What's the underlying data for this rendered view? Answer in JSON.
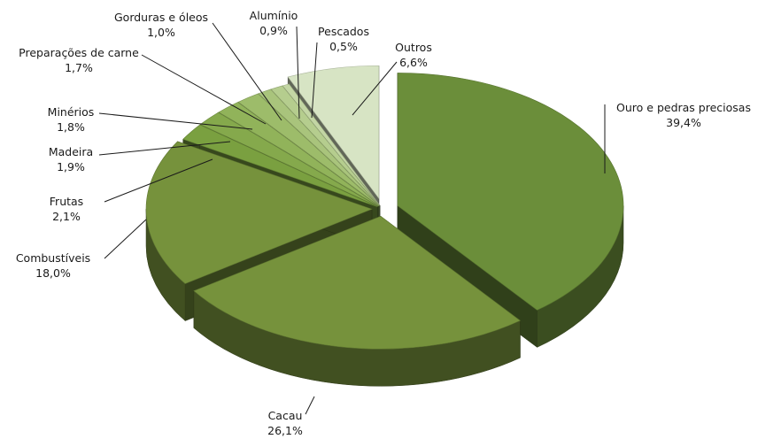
{
  "chart_data": {
    "type": "pie",
    "title": "",
    "style": "3d-exploded",
    "slices": [
      {
        "name": "Ouro e pedras preciosas",
        "value": 39.4,
        "label": "39,4%",
        "color": "#6b8e3a"
      },
      {
        "name": "Cacau",
        "value": 26.1,
        "label": "26,1%",
        "color": "#76923c"
      },
      {
        "name": "Combustíveis",
        "value": 18.0,
        "label": "18,0%",
        "color": "#76923c"
      },
      {
        "name": "Frutas",
        "value": 2.1,
        "label": "2,1%",
        "color": "#7aa040"
      },
      {
        "name": "Madeira",
        "value": 1.9,
        "label": "1,9%",
        "color": "#85a94c"
      },
      {
        "name": "Minérios",
        "value": 1.8,
        "label": "1,8%",
        "color": "#91b35a"
      },
      {
        "name": "Preparações de carne",
        "value": 1.7,
        "label": "1,7%",
        "color": "#9dbc6a"
      },
      {
        "name": "Gorduras e óleos",
        "value": 1.0,
        "label": "1,0%",
        "color": "#a9c47c"
      },
      {
        "name": "Alumínio",
        "value": 0.9,
        "label": "0,9%",
        "color": "#b5cd8e"
      },
      {
        "name": "Pescados",
        "value": 0.5,
        "label": "0,5%",
        "color": "#c3d6a4"
      },
      {
        "name": "Outros",
        "value": 6.6,
        "label": "6,6%",
        "color": "#d7e4c4"
      }
    ]
  }
}
